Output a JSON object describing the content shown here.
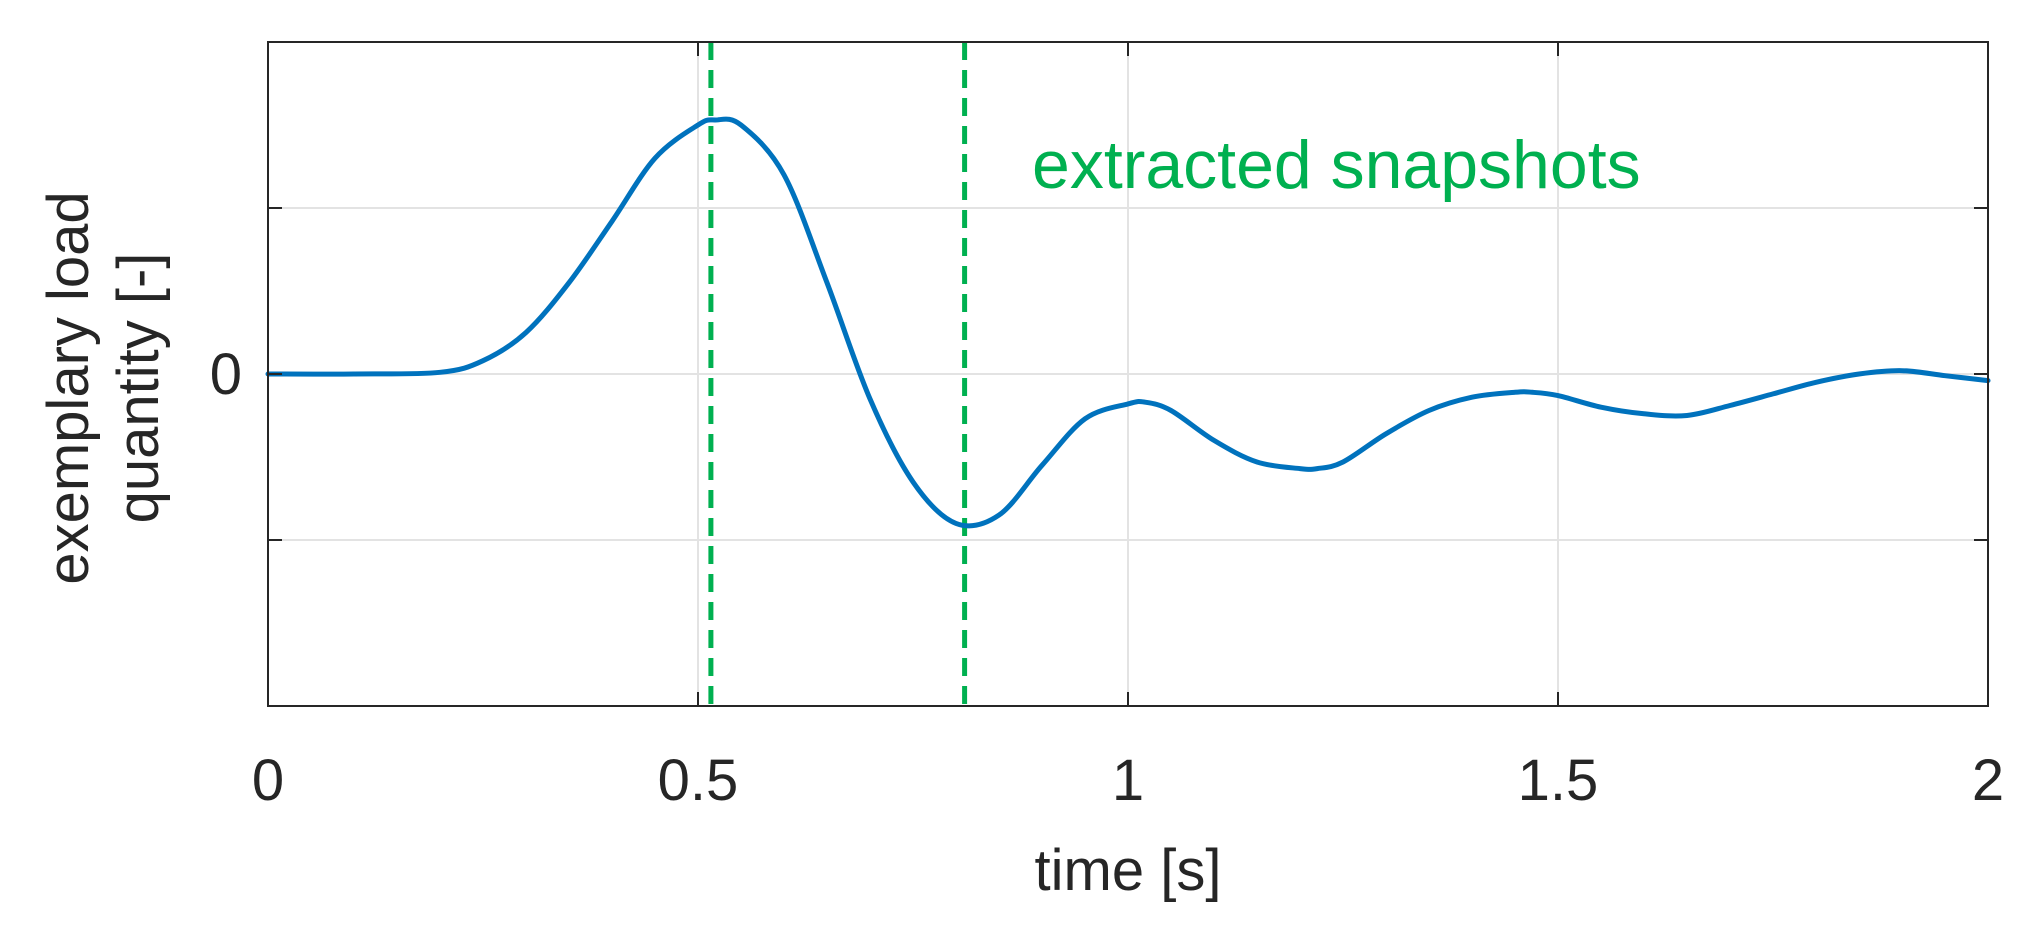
{
  "chart_data": {
    "type": "line",
    "title": "",
    "xlabel": "time [s]",
    "ylabel": [
      "exemplary load",
      "quantity [-]"
    ],
    "xlim": [
      0,
      2
    ],
    "ylim": [
      -2,
      2
    ],
    "x_ticks": [
      0,
      0.5,
      1,
      1.5,
      2
    ],
    "x_tick_labels": [
      "0",
      "0.5",
      "1",
      "1.5",
      "2"
    ],
    "y_ticks": [
      -1,
      0,
      1
    ],
    "y_tick_labels": [
      "",
      "0",
      ""
    ],
    "grid": true,
    "series": [
      {
        "color": "#0072BD",
        "x": [
          0,
          0.1,
          0.2,
          0.25,
          0.3,
          0.35,
          0.4,
          0.45,
          0.5,
          0.52,
          0.55,
          0.6,
          0.65,
          0.7,
          0.75,
          0.8,
          0.85,
          0.9,
          0.95,
          1.0,
          1.02,
          1.05,
          1.1,
          1.15,
          1.2,
          1.22,
          1.25,
          1.3,
          1.35,
          1.4,
          1.45,
          1.47,
          1.5,
          1.55,
          1.6,
          1.65,
          1.7,
          1.75,
          1.8,
          1.85,
          1.9,
          1.95,
          2.0
        ],
        "y": [
          0,
          0,
          0.01,
          0.08,
          0.25,
          0.55,
          0.92,
          1.3,
          1.5,
          1.53,
          1.5,
          1.2,
          0.55,
          -0.15,
          -0.65,
          -0.9,
          -0.85,
          -0.55,
          -0.27,
          -0.18,
          -0.17,
          -0.22,
          -0.4,
          -0.53,
          -0.57,
          -0.57,
          -0.53,
          -0.36,
          -0.22,
          -0.14,
          -0.11,
          -0.11,
          -0.13,
          -0.2,
          -0.24,
          -0.25,
          -0.19,
          -0.12,
          -0.05,
          0,
          0.02,
          -0.01,
          -0.04
        ]
      }
    ],
    "vlines": [
      {
        "x": 0.515,
        "color": "#00B050",
        "style": "dashed"
      },
      {
        "x": 0.81,
        "color": "#00B050",
        "style": "dashed"
      }
    ],
    "annotations": [
      {
        "text": "extracted snapshots",
        "color": "#00B050"
      }
    ]
  }
}
